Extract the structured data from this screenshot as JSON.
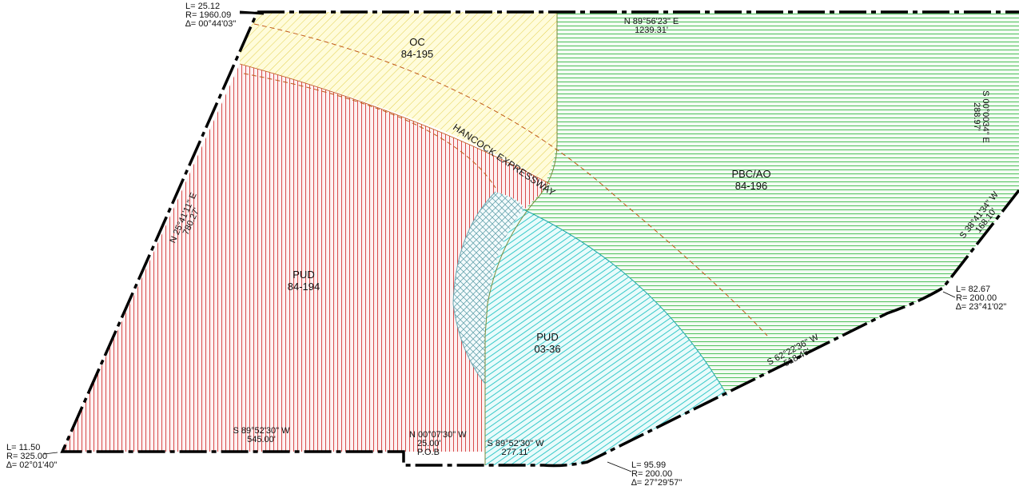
{
  "zones": [
    {
      "name": "OC",
      "number": "84-195"
    },
    {
      "name": "PBC/AO",
      "number": "84-196"
    },
    {
      "name": "PUD",
      "number": "84-194"
    },
    {
      "name": "PUD",
      "number": "03-36"
    }
  ],
  "road": {
    "name": "HANCOCK EXPRESSWAY"
  },
  "bearings": {
    "north": {
      "bearing": "N 89°56'23\" E",
      "distance": "1239.31'"
    },
    "east": {
      "bearing": "S 00°0034\" E",
      "distance": "288.97'"
    },
    "southeast1": {
      "bearing": "S 38°41'34\" W",
      "distance": "168.10'"
    },
    "southeast2": {
      "bearing": "S 62°22'36\" W",
      "distance": "518.46'"
    },
    "northwest": {
      "bearing": "N 25°41'11\" E",
      "distance": "780.27'"
    },
    "south_west": {
      "bearing": "S 89°52'30\" W",
      "distance": "545.00'"
    },
    "jog": {
      "bearing": "N 00°07'30\" W",
      "distance": "25.00'",
      "pob": "P.O.B"
    },
    "south_east": {
      "bearing": "S 89°52'30\" W",
      "distance": "277.11'"
    }
  },
  "curves": {
    "top_left": {
      "l": "L= 25.12",
      "r": "R= 1960.09",
      "delta": "∆= 00°44'03\""
    },
    "bottom_left": {
      "l": "L= 11.50",
      "r": "R= 325.00",
      "delta": "∆= 02°01'40\""
    },
    "bottom_mid": {
      "l": "L= 95.99",
      "r": "R= 200.00",
      "delta": "∆= 27°29'57\""
    },
    "right": {
      "l": "L= 82.67",
      "r": "R= 200.00",
      "delta": "∆= 23°41'02\""
    }
  },
  "colors": {
    "oc": "#e8d85a",
    "pbc": "#3cb94a",
    "pud194": "#d43a3a",
    "pud0336": "#22c3c3",
    "boundary": "#000000",
    "road_centerline": "#c05a1a"
  }
}
